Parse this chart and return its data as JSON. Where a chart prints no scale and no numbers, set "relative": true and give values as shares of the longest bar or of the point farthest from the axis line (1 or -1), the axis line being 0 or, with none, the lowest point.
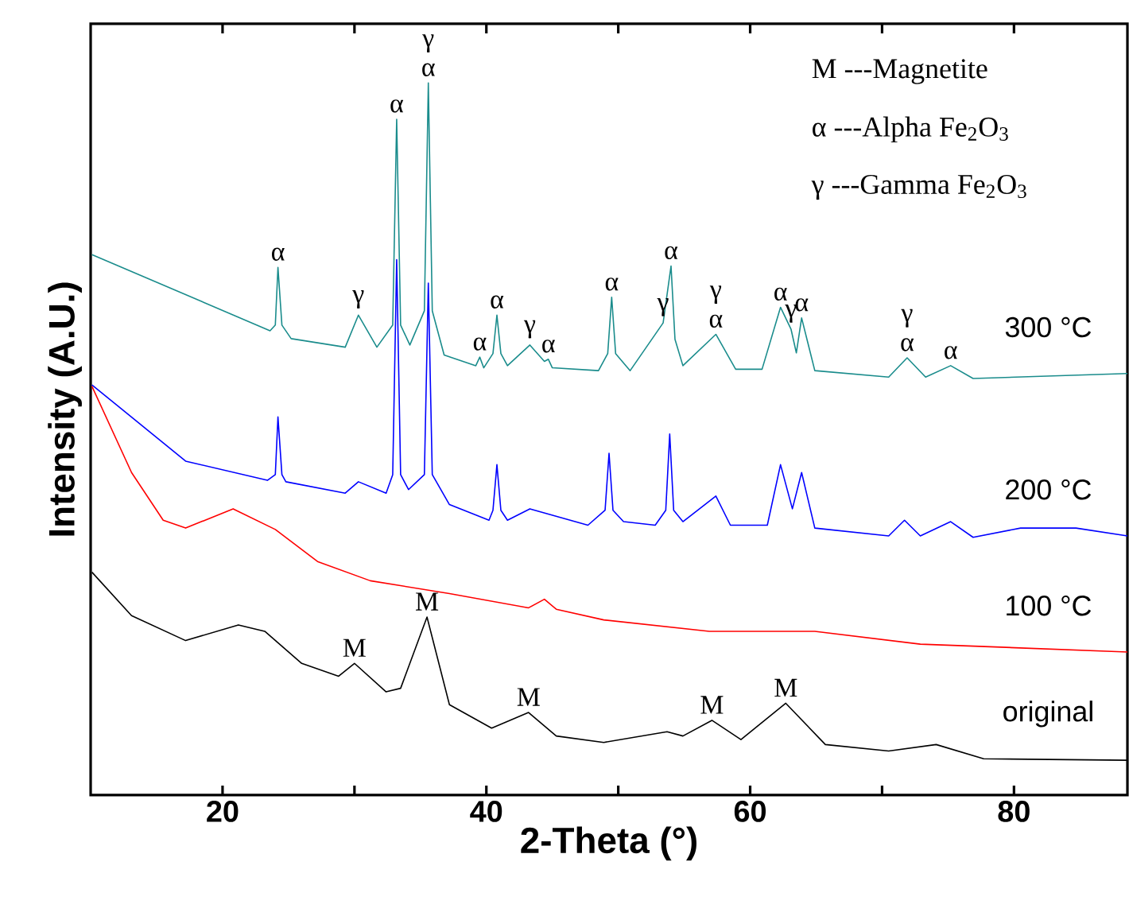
{
  "chart_data": {
    "type": "line",
    "relative": true,
    "xlabel": "2-Theta (°)",
    "ylabel": "Intensity (A.U.)",
    "xlim": [
      10,
      88.6
    ],
    "xticks": [
      20,
      {
        "value": 30,
        "label": null
      },
      40,
      {
        "value": 50,
        "label": null
      },
      60,
      {
        "value": 70,
        "label": null
      },
      80
    ],
    "marker": "none",
    "series": [
      {
        "name": "300 °C",
        "color": "#1a8c8c",
        "x": [
          10.1,
          23.6,
          24.0,
          24.2,
          24.5,
          25.2,
          29.3,
          30.3,
          31.7,
          32.9,
          33.2,
          33.5,
          34.2,
          35.3,
          35.6,
          35.9,
          36.8,
          39.2,
          39.5,
          39.8,
          40.5,
          40.8,
          41.1,
          41.6,
          43.3,
          44.4,
          44.7,
          45.0,
          48.5,
          49.2,
          49.5,
          49.8,
          50.9,
          53.4,
          54.0,
          54.3,
          54.9,
          57.4,
          58.9,
          60.9,
          62.3,
          63.1,
          63.5,
          63.9,
          64.9,
          70.5,
          71.9,
          73.3,
          75.2,
          76.9,
          88.6
        ],
        "values": [
          0.759,
          0.652,
          0.66,
          0.741,
          0.66,
          0.641,
          0.629,
          0.674,
          0.629,
          0.66,
          0.949,
          0.66,
          0.632,
          0.68,
          1.0,
          0.68,
          0.618,
          0.603,
          0.615,
          0.6,
          0.62,
          0.674,
          0.62,
          0.603,
          0.632,
          0.609,
          0.612,
          0.6,
          0.596,
          0.62,
          0.699,
          0.62,
          0.596,
          0.663,
          0.743,
          0.64,
          0.603,
          0.647,
          0.598,
          0.598,
          0.685,
          0.654,
          0.621,
          0.67,
          0.596,
          0.587,
          0.614,
          0.587,
          0.603,
          0.585,
          0.592
        ]
      },
      {
        "name": "200 °C",
        "color": "#0000ff",
        "x": [
          10.1,
          17.2,
          23.4,
          24.0,
          24.2,
          24.5,
          24.8,
          29.3,
          30.3,
          32.4,
          32.9,
          33.2,
          33.5,
          34.1,
          35.3,
          35.6,
          35.9,
          37.2,
          40.2,
          40.5,
          40.8,
          41.1,
          41.6,
          43.3,
          47.7,
          49.0,
          49.3,
          49.6,
          50.4,
          52.8,
          53.6,
          53.9,
          54.2,
          54.9,
          57.4,
          58.5,
          61.3,
          62.3,
          63.2,
          63.9,
          64.9,
          70.5,
          71.7,
          72.9,
          75.2,
          76.9,
          80.5,
          82.9,
          84.7,
          88.6
        ],
        "values": [
          0.576,
          0.469,
          0.442,
          0.45,
          0.531,
          0.45,
          0.44,
          0.424,
          0.44,
          0.424,
          0.45,
          0.752,
          0.45,
          0.429,
          0.45,
          0.719,
          0.45,
          0.408,
          0.386,
          0.4,
          0.464,
          0.4,
          0.386,
          0.402,
          0.379,
          0.4,
          0.48,
          0.4,
          0.384,
          0.379,
          0.4,
          0.507,
          0.4,
          0.384,
          0.42,
          0.379,
          0.379,
          0.464,
          0.402,
          0.453,
          0.375,
          0.364,
          0.386,
          0.364,
          0.384,
          0.362,
          0.375,
          0.375,
          0.375,
          0.364
        ]
      },
      {
        "name": "100 °C",
        "color": "#ff0000",
        "x": [
          10.1,
          13.1,
          15.5,
          17.2,
          20.8,
          24.0,
          27.2,
          31.2,
          37.2,
          43.2,
          44.4,
          45.3,
          48.9,
          56.9,
          64.9,
          72.9,
          88.6
        ],
        "values": [
          0.574,
          0.453,
          0.386,
          0.375,
          0.402,
          0.373,
          0.328,
          0.301,
          0.283,
          0.263,
          0.275,
          0.261,
          0.246,
          0.23,
          0.23,
          0.212,
          0.201
        ]
      },
      {
        "name": "original",
        "color": "#000000",
        "x": [
          10.1,
          13.1,
          17.2,
          21.2,
          23.2,
          26.0,
          28.8,
          30.0,
          32.4,
          33.5,
          35.5,
          37.2,
          40.4,
          43.2,
          45.3,
          48.9,
          53.7,
          54.9,
          57.1,
          59.3,
          62.7,
          65.7,
          70.5,
          74.1,
          77.7,
          88.6
        ],
        "values": [
          0.313,
          0.252,
          0.217,
          0.239,
          0.23,
          0.185,
          0.167,
          0.185,
          0.145,
          0.15,
          0.25,
          0.127,
          0.094,
          0.116,
          0.083,
          0.074,
          0.089,
          0.083,
          0.105,
          0.078,
          0.129,
          0.071,
          0.062,
          0.071,
          0.051,
          0.049
        ]
      }
    ],
    "annotations": [
      "M ---Magnetite",
      "α ---Alpha Fe$_{2}$O$_{3}$",
      "γ ---Gamma Fe$_{2}$O$_{3}$",
      {
        "text": "α",
        "x": 24.2,
        "y": 0.741
      },
      {
        "text": "γ",
        "x": 30.3,
        "y": 0.674
      },
      {
        "text": "α",
        "x": 33.2,
        "y": 0.949
      },
      {
        "text": "α",
        "x": 35.6,
        "y": 1.0
      },
      {
        "text": "γ",
        "x": 35.6,
        "y": 1.0
      },
      {
        "text": "α",
        "x": 39.5,
        "y": 0.615
      },
      {
        "text": "α",
        "x": 40.8,
        "y": 0.674
      },
      {
        "text": "γ",
        "x": 43.3,
        "y": 0.632
      },
      {
        "text": "α",
        "x": 44.7,
        "y": 0.612
      },
      {
        "text": "α",
        "x": 49.5,
        "y": 0.699
      },
      {
        "text": "γ",
        "x": 53.4,
        "y": 0.663
      },
      {
        "text": "α",
        "x": 54.0,
        "y": 0.743
      },
      {
        "text": "α",
        "x": 57.4,
        "y": 0.647
      },
      {
        "text": "γ",
        "x": 57.4,
        "y": 0.647
      },
      {
        "text": "α",
        "x": 62.3,
        "y": 0.685
      },
      {
        "text": "γ",
        "x": 63.1,
        "y": 0.654
      },
      {
        "text": "α",
        "x": 63.9,
        "y": 0.67
      },
      {
        "text": "α",
        "x": 71.9,
        "y": 0.614
      },
      {
        "text": "γ",
        "x": 71.9,
        "y": 0.614
      },
      {
        "text": "α",
        "x": 75.2,
        "y": 0.603
      },
      {
        "text": "M",
        "x": 30.0,
        "y": 0.185
      },
      {
        "text": "M",
        "x": 35.5,
        "y": 0.25
      },
      {
        "text": "M",
        "x": 43.2,
        "y": 0.116
      },
      {
        "text": "M",
        "x": 57.1,
        "y": 0.105
      },
      {
        "text": "M",
        "x": 62.7,
        "y": 0.129
      }
    ]
  }
}
